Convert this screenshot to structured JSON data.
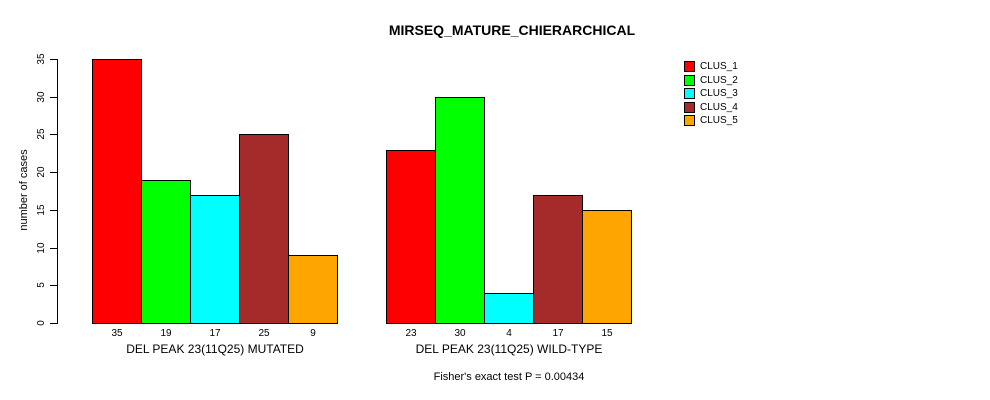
{
  "chart_data": {
    "type": "bar",
    "title": "MIRSEQ_MATURE_CHIERARCHICAL",
    "ylabel": "number of cases",
    "ylim": [
      0,
      35
    ],
    "yticks": [
      0,
      5,
      10,
      15,
      20,
      25,
      30,
      35
    ],
    "grid": false,
    "background": "#FFFFFF",
    "categories": [
      "DEL PEAK 23(11Q25) MUTATED",
      "DEL PEAK 23(11Q25) WILD-TYPE"
    ],
    "series": [
      {
        "name": "CLUS_1",
        "color": "#FF0000",
        "values": [
          35,
          23
        ]
      },
      {
        "name": "CLUS_2",
        "color": "#00FF00",
        "values": [
          19,
          30
        ]
      },
      {
        "name": "CLUS_3",
        "color": "#00FFFF",
        "values": [
          17,
          4
        ]
      },
      {
        "name": "CLUS_4",
        "color": "#A52A2A",
        "values": [
          25,
          17
        ]
      },
      {
        "name": "CLUS_5",
        "color": "#FFA500",
        "values": [
          9,
          15
        ]
      }
    ],
    "bar_value_labels_shown": true,
    "legend": {
      "position": "top-right",
      "entries": [
        {
          "label": "CLUS_1",
          "color": "#FF0000"
        },
        {
          "label": "CLUS_2",
          "color": "#00FF00"
        },
        {
          "label": "CLUS_3",
          "color": "#00FFFF"
        },
        {
          "label": "CLUS_4",
          "color": "#A52A2A"
        },
        {
          "label": "CLUS_5",
          "color": "#FFA500"
        }
      ]
    },
    "footnote": "Fisher's exact test P = 0.00434"
  }
}
